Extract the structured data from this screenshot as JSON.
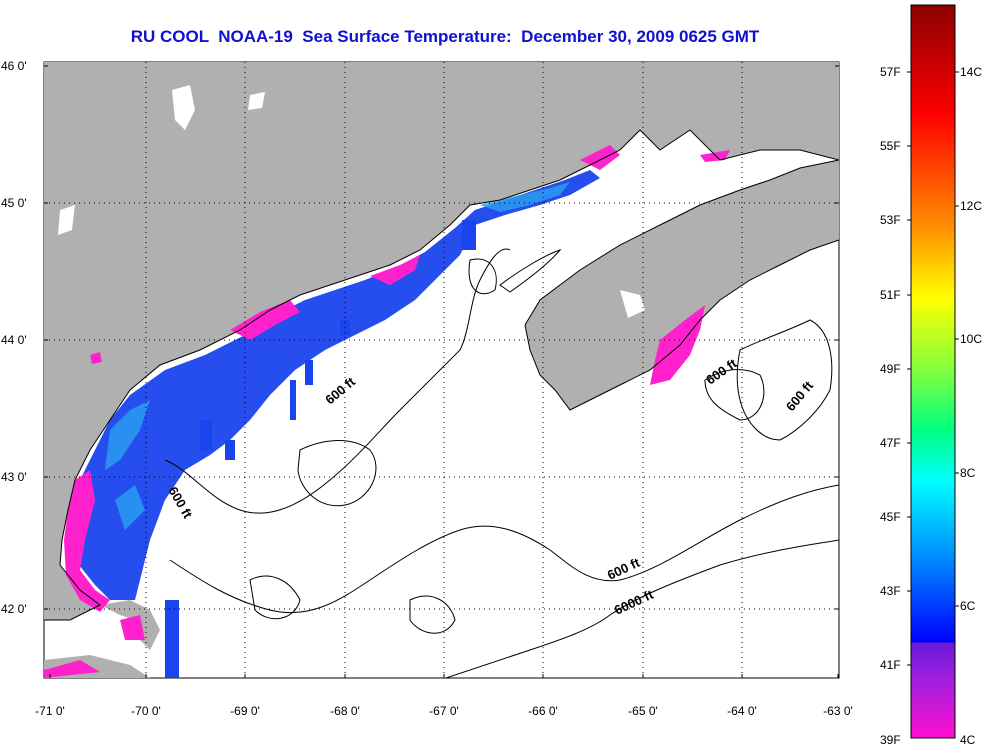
{
  "title": "RU COOL  NOAA-19  Sea Surface Temperature:  December 30, 2009 0625 GMT",
  "map": {
    "lat_labels": [
      "46 0'",
      "45 0'",
      "44 0'",
      "43 0'",
      "42 0'"
    ],
    "lon_labels": [
      "-71 0'",
      "-70 0'",
      "-69 0'",
      "-68 0'",
      "-67 0'",
      "-66 0'",
      "-65 0'",
      "-64 0'",
      "-63 0'"
    ],
    "contour_labels": [
      "600 ft",
      "600 ft",
      "600 ft",
      "600 ft",
      "600 ft",
      "6000 ft"
    ],
    "colors": {
      "land": "#b0b0b0",
      "ocean": "#ffffff",
      "cold": "#ff22cc",
      "cool": "#1a44ee",
      "medium": "#2a9cf0"
    }
  },
  "colorbar": {
    "fahrenheit_labels": [
      "57F",
      "55F",
      "53F",
      "51F",
      "49F",
      "47F",
      "45F",
      "43F",
      "41F",
      "39F"
    ],
    "celsius_labels": [
      "14C",
      "12C",
      "10C",
      "8C",
      "6C",
      "4C"
    ],
    "colors": [
      "#8b0000",
      "#ff0000",
      "#ff8c00",
      "#ffff00",
      "#80ff00",
      "#00ff80",
      "#00ffff",
      "#0080ff",
      "#0000ff",
      "#8800ff",
      "#ff00cc"
    ]
  }
}
